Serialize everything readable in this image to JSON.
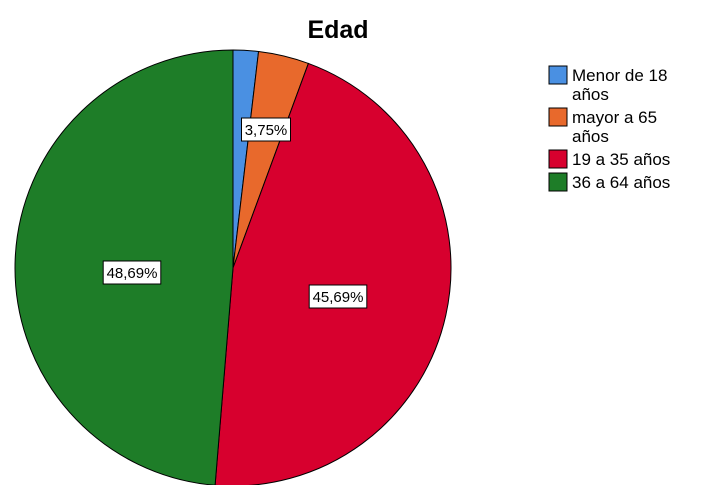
{
  "chart_data": {
    "type": "pie",
    "title": "Edad",
    "slices": [
      {
        "label": "Menor de 18 años",
        "legend_lines": [
          "Menor de 18",
          "años"
        ],
        "value": 1.87,
        "color": "#4a90e2",
        "data_label": ""
      },
      {
        "label": "mayor a 65 años",
        "legend_lines": [
          "mayor a 65",
          "años"
        ],
        "value": 3.75,
        "color": "#e8692c",
        "data_label": "3,75%"
      },
      {
        "label": "19 a 35 años",
        "legend_lines": [
          "19 a 35 años"
        ],
        "value": 45.69,
        "color": "#d7002e",
        "data_label": "45,69%"
      },
      {
        "label": "36 a 64 años",
        "legend_lines": [
          "36 a 64 años"
        ],
        "value": 48.69,
        "color": "#1e7d28",
        "data_label": "48,69%"
      }
    ],
    "start_angle_deg": 0,
    "direction": "clockwise",
    "legend_position": "right"
  }
}
